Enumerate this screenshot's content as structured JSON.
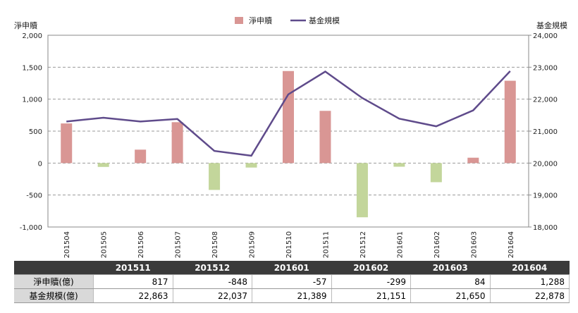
{
  "chart_data": {
    "type": "combo",
    "y_label": "淨申贖",
    "y2_label": "基金規模",
    "categories": [
      "201504",
      "201505",
      "201506",
      "201507",
      "201508",
      "201509",
      "201510",
      "201511",
      "201512",
      "201601",
      "201602",
      "201603",
      "201604"
    ],
    "series": [
      {
        "name": "淨申贖",
        "type": "bar",
        "color": "#d99694",
        "negative_color": "#c3d69b",
        "values": [
          620,
          -60,
          210,
          640,
          -420,
          -70,
          1440,
          817,
          -848,
          -57,
          -299,
          84,
          1288
        ]
      },
      {
        "name": "基金規模",
        "type": "line",
        "axis": "y2",
        "color": "#5f4b8b",
        "values": [
          21300,
          21420,
          21300,
          21380,
          20380,
          20230,
          22150,
          22863,
          22037,
          21389,
          21151,
          21650,
          22878
        ]
      }
    ],
    "ylim": [
      -1000,
      2000
    ],
    "yticks": [
      {
        "value": -1000,
        "label": "-1,000"
      },
      -500,
      0,
      500,
      {
        "value": 1000,
        "label": "1,000"
      },
      {
        "value": 1500,
        "label": "1,500"
      },
      {
        "value": 2000,
        "label": "2,000"
      }
    ],
    "y2lim": [
      18000,
      24000
    ],
    "y2ticks": [
      {
        "value": 18000,
        "label": "18,000"
      },
      {
        "value": 19000,
        "label": "19,000"
      },
      {
        "value": 20000,
        "label": "20,000"
      },
      {
        "value": 21000,
        "label": "21,000"
      },
      {
        "value": 22000,
        "label": "22,000"
      },
      {
        "value": 23000,
        "label": "23,000"
      },
      {
        "value": 24000,
        "label": "24,000"
      }
    ],
    "grid": true,
    "legend": "top"
  },
  "table": {
    "header": [
      "",
      "201511",
      "201512",
      "201601",
      "201602",
      "201603",
      "201604"
    ],
    "rows": [
      [
        "淨申贖(億)",
        "817",
        "-848",
        "-57",
        "-299",
        "84",
        "1,288"
      ],
      [
        "基金規模(億)",
        "22,863",
        "22,037",
        "21,389",
        "21,151",
        "21,650",
        "22,878"
      ]
    ]
  }
}
